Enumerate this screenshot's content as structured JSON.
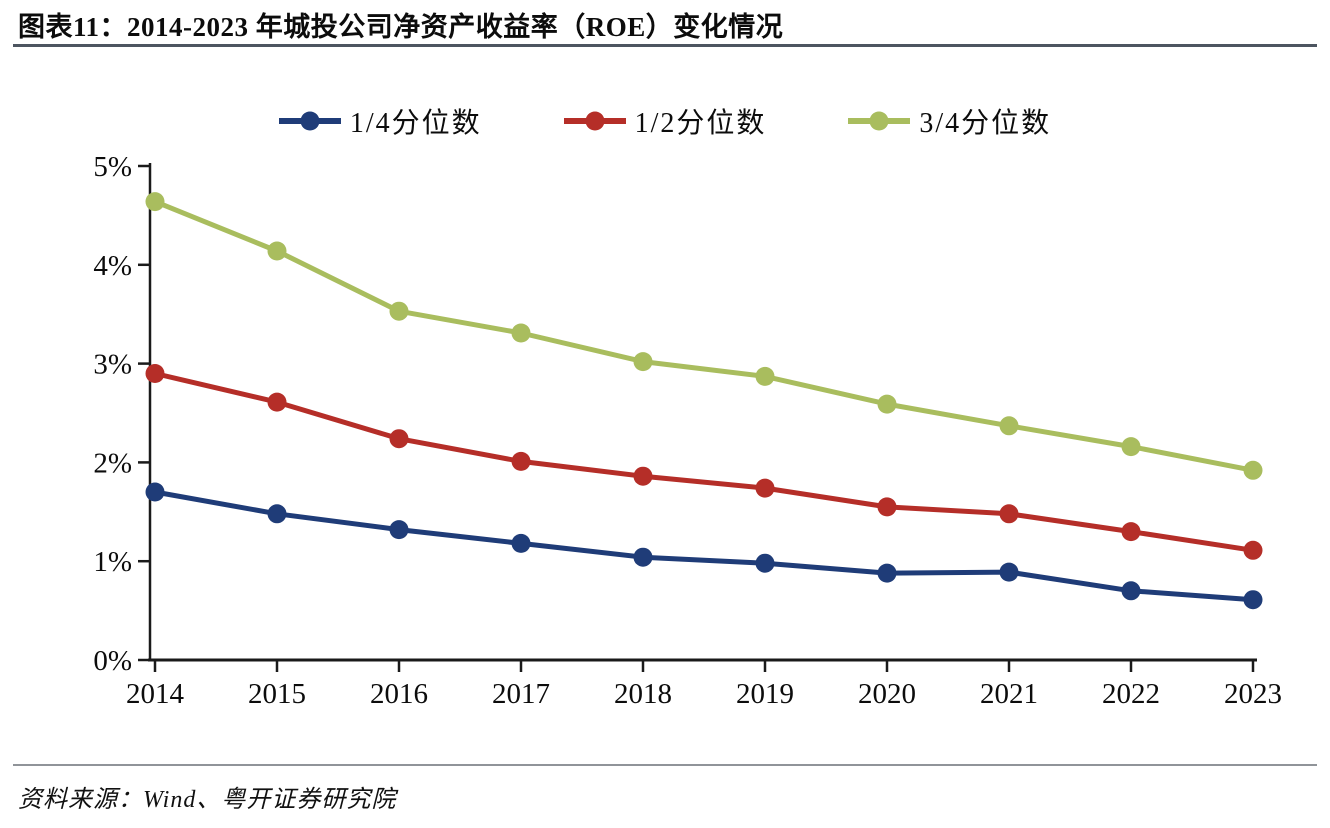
{
  "header": {
    "title": "图表11：2014-2023 年城投公司净资产收益率（ROE）变化情况"
  },
  "footer": {
    "source": "资料来源：Wind、粤开证券研究院"
  },
  "chart_data": {
    "type": "line",
    "title": "2014-2023 年城投公司净资产收益率（ROE）变化情况",
    "categories": [
      "2014",
      "2015",
      "2016",
      "2017",
      "2018",
      "2019",
      "2020",
      "2021",
      "2022",
      "2023"
    ],
    "series": [
      {
        "name": "1/4分位数",
        "color": "#1f3c78",
        "values": [
          1.7,
          1.48,
          1.32,
          1.18,
          1.04,
          0.98,
          0.88,
          0.89,
          0.7,
          0.61
        ]
      },
      {
        "name": "1/2分位数",
        "color": "#b52e28",
        "values": [
          2.9,
          2.61,
          2.24,
          2.01,
          1.86,
          1.74,
          1.55,
          1.48,
          1.3,
          1.11
        ]
      },
      {
        "name": "3/4分位数",
        "color": "#a9bd5e",
        "values": [
          4.64,
          4.14,
          3.53,
          3.31,
          3.02,
          2.87,
          2.59,
          2.37,
          2.16,
          1.92
        ]
      }
    ],
    "xlabel": "",
    "ylabel": "",
    "y_tick_labels": [
      "0%",
      "1%",
      "2%",
      "3%",
      "4%",
      "5%"
    ],
    "ylim": [
      0,
      5
    ],
    "grid": false,
    "legend_position": "top",
    "marker": "circle"
  },
  "style": {
    "axis_color": "#1a1a1a",
    "title_rule_color": "#4d5560",
    "footer_rule_color": "#909499"
  }
}
